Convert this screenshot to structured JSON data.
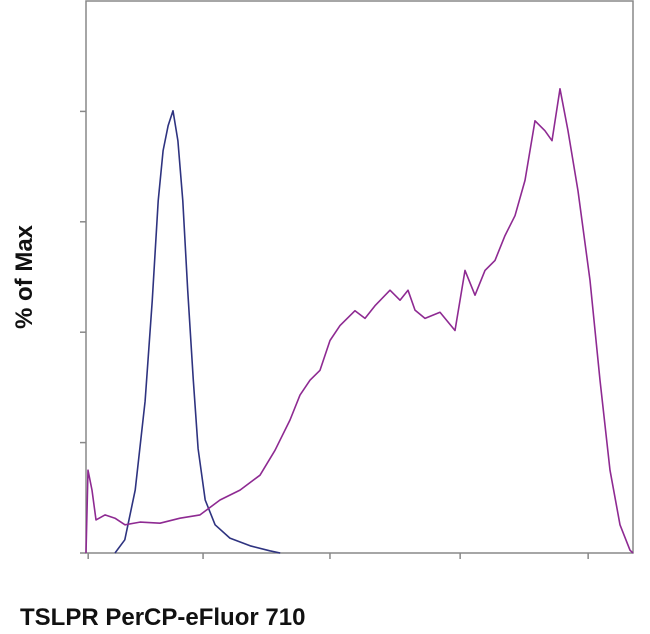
{
  "chart_data": {
    "type": "line",
    "x_label": "TSLPR PerCP-eFluor 710",
    "y_label": "% of Max",
    "xlim": [
      0,
      1000
    ],
    "ylim": [
      0,
      100
    ],
    "xticks": [
      4,
      214,
      446,
      684,
      918
    ],
    "yticks": [
      0,
      20,
      40,
      60,
      80
    ],
    "series": [
      {
        "color": "#2e3380",
        "x": [
          53,
          71,
          90,
          108,
          121,
          132,
          141,
          150,
          159,
          168,
          177,
          186,
          196,
          205,
          218,
          236,
          263,
          300,
          336,
          355
        ],
        "values": [
          0,
          2.4,
          11.4,
          27.5,
          45.6,
          63.8,
          72.9,
          77.4,
          80.1,
          74.7,
          63.8,
          47.6,
          31.6,
          18.9,
          9.6,
          5.1,
          2.7,
          1.3,
          0.4,
          0
        ]
      },
      {
        "color": "#8e2a92",
        "x": [
          0,
          3.7,
          11,
          18.3,
          34.7,
          53,
          71.3,
          98.7,
          135.3,
          171.8,
          208.4,
          245,
          281.5,
          318.1,
          345.5,
          373,
          391.2,
          409.5,
          427.8,
          446,
          464.4,
          491.8,
          510,
          528.3,
          555.8,
          574,
          588.7,
          601.5,
          619.7,
          647.2,
          674.6,
          692.9,
          711.2,
          729.4,
          747.7,
          766,
          784.3,
          802.6,
          820.8,
          839,
          851.9,
          866.5,
          881.2,
          899.5,
          921.4,
          939.7,
          958,
          976.2,
          994.5,
          1000
        ],
        "values": [
          0,
          15,
          11.4,
          6,
          6.9,
          6.3,
          5.1,
          5.6,
          5.4,
          6.3,
          6.9,
          9.6,
          11.4,
          14.1,
          18.6,
          24.1,
          28.6,
          31.3,
          33.1,
          38.5,
          41.2,
          43.9,
          42.5,
          44.8,
          47.6,
          45.8,
          47.6,
          44,
          42.5,
          43.6,
          40.3,
          51.2,
          46.7,
          51.2,
          53,
          57.5,
          61.1,
          67.5,
          78.3,
          76.5,
          74.7,
          84.1,
          76.5,
          65.6,
          49.4,
          31.3,
          15,
          5.1,
          0.5,
          0
        ]
      }
    ]
  }
}
